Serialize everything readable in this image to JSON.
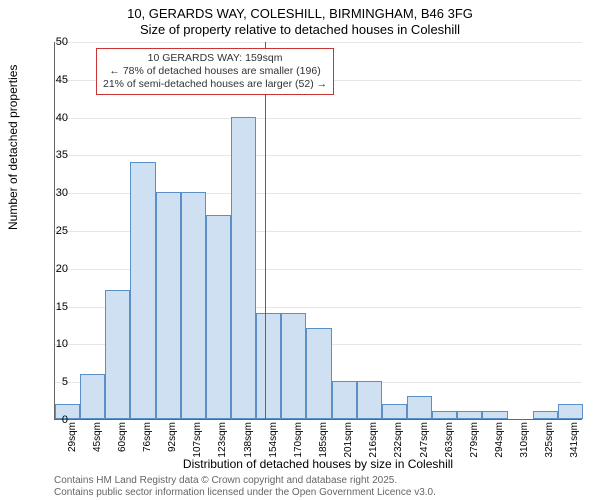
{
  "title_line1": "10, GERARDS WAY, COLESHILL, BIRMINGHAM, B46 3FG",
  "title_line2": "Size of property relative to detached houses in Coleshill",
  "y_axis_label": "Number of detached properties",
  "x_axis_label": "Distribution of detached houses by size in Coleshill",
  "footnote1": "Contains HM Land Registry data © Crown copyright and database right 2025.",
  "footnote2": "Contains public sector information licensed under the Open Government Licence v3.0.",
  "chart": {
    "type": "histogram",
    "ylim": [
      0,
      50
    ],
    "ytick_step": 5,
    "bar_fill": "#cfe0f3",
    "bar_border": "#5b8fc7",
    "grid_color": "#e6e6e6",
    "background": "#ffffff",
    "marker_color": "#cc3333",
    "marker_bin_index": 8,
    "bins": [
      {
        "label": "29sqm",
        "value": 2
      },
      {
        "label": "45sqm",
        "value": 6
      },
      {
        "label": "60sqm",
        "value": 17
      },
      {
        "label": "76sqm",
        "value": 34
      },
      {
        "label": "92sqm",
        "value": 30
      },
      {
        "label": "107sqm",
        "value": 30
      },
      {
        "label": "123sqm",
        "value": 27
      },
      {
        "label": "138sqm",
        "value": 40
      },
      {
        "label": "154sqm",
        "value": 14
      },
      {
        "label": "170sqm",
        "value": 14
      },
      {
        "label": "185sqm",
        "value": 12
      },
      {
        "label": "201sqm",
        "value": 5
      },
      {
        "label": "216sqm",
        "value": 5
      },
      {
        "label": "232sqm",
        "value": 2
      },
      {
        "label": "247sqm",
        "value": 3
      },
      {
        "label": "263sqm",
        "value": 1
      },
      {
        "label": "279sqm",
        "value": 1
      },
      {
        "label": "294sqm",
        "value": 1
      },
      {
        "label": "310sqm",
        "value": 0
      },
      {
        "label": "325sqm",
        "value": 1
      },
      {
        "label": "341sqm",
        "value": 2
      }
    ],
    "annotation": {
      "line1": "10 GERARDS WAY: 159sqm",
      "line2": "← 78% of detached houses are smaller (196)",
      "line3": "21% of semi-detached houses are larger (52) →"
    }
  }
}
